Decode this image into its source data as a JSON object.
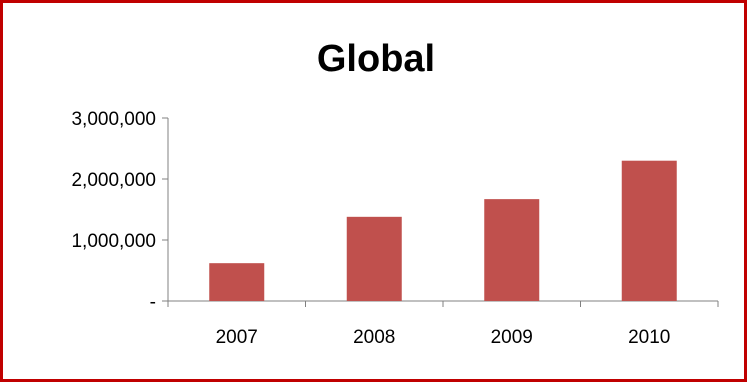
{
  "chart_data": {
    "type": "bar",
    "title": "Global",
    "categories": [
      "2007",
      "2008",
      "2009",
      "2010"
    ],
    "values": [
      620000,
      1380000,
      1670000,
      2300000
    ],
    "ylim": [
      0,
      3000000
    ],
    "yticks": [
      0,
      1000000,
      2000000,
      3000000
    ],
    "ytick_labels": [
      "-",
      "1,000,000",
      "2,000,000",
      "3,000,000"
    ],
    "xlabel": "",
    "ylabel": "",
    "grid": false,
    "legend": "none",
    "bar_color": "#c0504d",
    "frame_color": "#c00000"
  }
}
